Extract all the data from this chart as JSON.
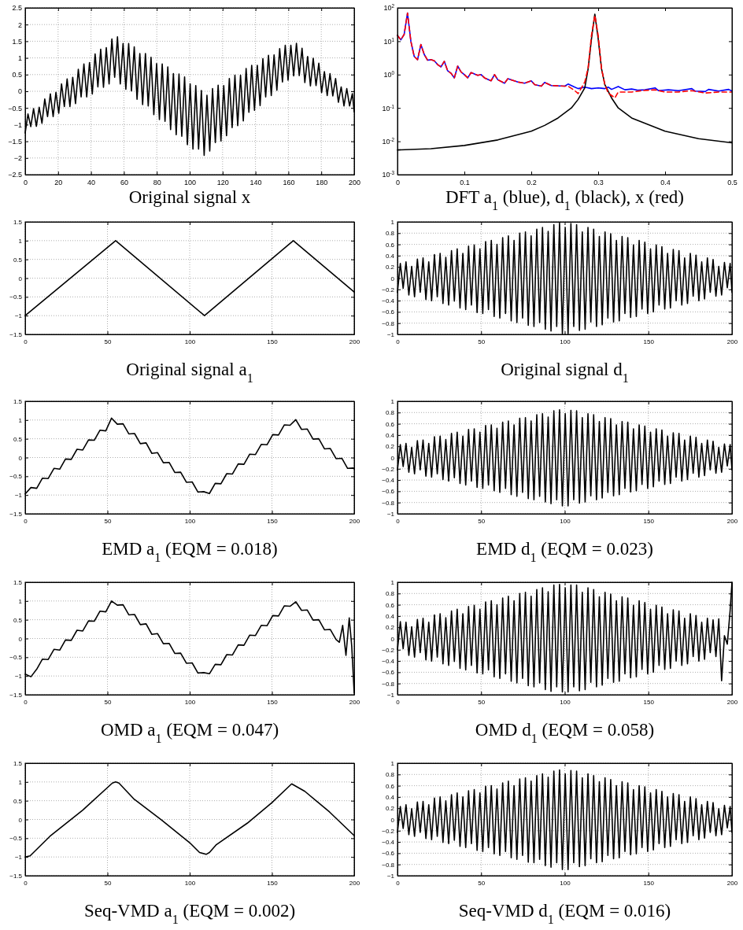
{
  "chart_data": [
    {
      "type": "line",
      "title": "Original signal x",
      "xlim": [
        0,
        200
      ],
      "ylim": [
        -2.5,
        2.5
      ],
      "xticks": [
        0,
        20,
        40,
        60,
        80,
        100,
        120,
        140,
        160,
        180,
        200
      ],
      "yticks": [
        -2.5,
        -2,
        -1.5,
        -1,
        -0.5,
        0,
        0.5,
        1,
        1.5,
        2,
        2.5
      ],
      "grid": true,
      "x": [
        0,
        1.7,
        3.4,
        5.1,
        6.8,
        8.5,
        10.2,
        11.9,
        13.6,
        15.3,
        17,
        18.7,
        20.4,
        22.1,
        23.8,
        25.5,
        27.2,
        28.9,
        30.6,
        32.3,
        34,
        35.7,
        37.4,
        39.1,
        40.8,
        42.5,
        44.2,
        45.9,
        47.6,
        49.3,
        51,
        52.7,
        54.4,
        56.1,
        57.8,
        59.5,
        61.2,
        62.9,
        64.6,
        66.3,
        68,
        69.7,
        71.4,
        73.1,
        74.8,
        76.5,
        78.2,
        79.9,
        81.6,
        83.3,
        85,
        86.7,
        88.4,
        90.1,
        91.8,
        93.5,
        95.2,
        96.9,
        98.6,
        100.3,
        102,
        103.7,
        105.4,
        107.1,
        108.8,
        110.5,
        112.2,
        113.9,
        115.6,
        117.3,
        119,
        120.7,
        122.4,
        124.1,
        125.8,
        127.5,
        129.2,
        130.9,
        132.6,
        134.3,
        136,
        137.7,
        139.4,
        141.1,
        142.8,
        144.5,
        146.2,
        147.9,
        149.6,
        151.3,
        153,
        154.7,
        156.4,
        158.1,
        159.8,
        161.5,
        163.2,
        164.9,
        166.6,
        168.3,
        170,
        171.7,
        173.4,
        175.1,
        176.8,
        178.5,
        180.2,
        181.9,
        183.6,
        185.3,
        187,
        188.7,
        190.4,
        192.1,
        193.8,
        195.5,
        197.2,
        198.9,
        200
      ],
      "series": [
        {
          "color": "#000000",
          "values": [
            -1.25,
            -0.68,
            -1.06,
            -0.52,
            -1.05,
            -0.48,
            -0.96,
            -0.23,
            -0.76,
            -0.08,
            -0.76,
            -0.03,
            -0.66,
            0.22,
            -0.46,
            0.37,
            -0.46,
            0.42,
            -0.37,
            0.66,
            -0.17,
            0.82,
            -0.17,
            0.86,
            -0.08,
            1.12,
            0.13,
            1.26,
            0.12,
            1.31,
            0.22,
            1.57,
            0.42,
            1.63,
            0.22,
            1.43,
            0.06,
            1.43,
            0.01,
            1.33,
            -0.24,
            1.13,
            -0.4,
            1.13,
            -0.44,
            1.02,
            -0.7,
            0.83,
            -0.85,
            0.82,
            -0.9,
            0.73,
            -1.15,
            0.53,
            -1.3,
            0.52,
            -1.35,
            0.43,
            -1.6,
            0.22,
            -1.73,
            0.17,
            -1.73,
            0.02,
            -1.92,
            -0.12,
            -1.79,
            0.08,
            -1.54,
            0.18,
            -1.49,
            0.17,
            -1.33,
            0.38,
            -1.09,
            0.48,
            -1.03,
            0.48,
            -0.89,
            0.68,
            -0.63,
            0.78,
            -0.57,
            0.78,
            -0.43,
            0.98,
            -0.17,
            1.08,
            -0.13,
            1.09,
            0.03,
            1.28,
            0.28,
            1.38,
            0.33,
            1.38,
            0.46,
            1.44,
            0.47,
            1.29,
            0.26,
            1.04,
            0.16,
            0.99,
            0.17,
            0.84,
            -0.04,
            0.59,
            -0.13,
            0.53,
            -0.14,
            0.38,
            -0.33,
            0.13,
            -0.44,
            0.08,
            -0.44,
            -0.07,
            -0.62
          ]
        }
      ]
    },
    {
      "type": "line",
      "title": "DFT a$_{1}$ (blue), d$_{1}$ (black), x (red)",
      "log": "y",
      "grid": false,
      "xlim": [
        0,
        0.5
      ],
      "ylim": [
        0.001,
        100
      ],
      "xticks": [
        0,
        0.1,
        0.2,
        0.3,
        0.4,
        0.5
      ],
      "yticks": [
        {
          "value": 0.001,
          "label": "10$^{-3}$"
        },
        {
          "value": 0.01,
          "label": "10$^{-2}$"
        },
        {
          "value": 0.1,
          "label": "10$^{-1}$"
        },
        {
          "value": 1,
          "label": "10$^{0}$"
        },
        {
          "value": 10,
          "label": "10$^{1}$"
        },
        {
          "value": 100,
          "label": "10$^{2}$"
        }
      ],
      "series": [
        {
          "color": "#0000ff",
          "x": [
            0,
            0.005,
            0.01,
            0.015,
            0.02,
            0.025,
            0.03,
            0.035,
            0.04,
            0.045,
            0.05,
            0.055,
            0.06,
            0.065,
            0.07,
            0.075,
            0.08,
            0.085,
            0.09,
            0.095,
            0.1,
            0.105,
            0.11,
            0.12,
            0.125,
            0.13,
            0.14,
            0.145,
            0.15,
            0.16,
            0.165,
            0.18,
            0.19,
            0.2,
            0.205,
            0.215,
            0.22,
            0.23,
            0.25,
            0.255,
            0.265,
            0.27,
            0.28,
            0.29,
            0.3,
            0.31,
            0.315,
            0.32,
            0.33,
            0.34,
            0.35,
            0.36,
            0.37,
            0.385,
            0.39,
            0.405,
            0.42,
            0.44,
            0.445,
            0.46,
            0.465,
            0.48,
            0.495,
            0.5
          ],
          "values": [
            15,
            11,
            16,
            70,
            10,
            3.5,
            2.8,
            8,
            4,
            2.7,
            2.8,
            2.6,
            2,
            1.7,
            2.5,
            1.3,
            1.1,
            0.8,
            1.8,
            1.2,
            1,
            0.8,
            1.15,
            0.95,
            1,
            0.8,
            0.65,
            1,
            0.7,
            0.55,
            0.75,
            0.6,
            0.55,
            0.65,
            0.5,
            0.45,
            0.58,
            0.47,
            0.45,
            0.52,
            0.42,
            0.38,
            0.42,
            0.38,
            0.4,
            0.38,
            0.42,
            0.36,
            0.44,
            0.35,
            0.37,
            0.34,
            0.35,
            0.4,
            0.33,
            0.35,
            0.33,
            0.38,
            0.32,
            0.31,
            0.36,
            0.32,
            0.36,
            0.32
          ]
        },
        {
          "color": "#000000",
          "x": [
            0,
            0.05,
            0.1,
            0.15,
            0.2,
            0.22,
            0.24,
            0.26,
            0.27,
            0.28,
            0.285,
            0.29,
            0.295,
            0.3,
            0.305,
            0.31,
            0.32,
            0.33,
            0.35,
            0.4,
            0.45,
            0.5
          ],
          "values": [
            0.0055,
            0.006,
            0.0075,
            0.011,
            0.02,
            0.03,
            0.05,
            0.1,
            0.18,
            0.4,
            1.5,
            12,
            65,
            12,
            1.5,
            0.5,
            0.2,
            0.1,
            0.05,
            0.02,
            0.012,
            0.009
          ]
        },
        {
          "color": "#ff0000",
          "line_style": "dashed",
          "x": [
            0,
            0.005,
            0.01,
            0.015,
            0.02,
            0.025,
            0.03,
            0.035,
            0.04,
            0.045,
            0.05,
            0.055,
            0.06,
            0.065,
            0.07,
            0.075,
            0.08,
            0.085,
            0.09,
            0.095,
            0.1,
            0.105,
            0.11,
            0.12,
            0.125,
            0.13,
            0.14,
            0.145,
            0.15,
            0.16,
            0.165,
            0.18,
            0.19,
            0.2,
            0.205,
            0.215,
            0.22,
            0.23,
            0.25,
            0.255,
            0.265,
            0.27,
            0.275,
            0.28,
            0.285,
            0.29,
            0.295,
            0.3,
            0.305,
            0.31,
            0.315,
            0.325,
            0.33,
            0.35,
            0.365,
            0.385,
            0.4,
            0.42,
            0.44,
            0.46,
            0.48,
            0.5
          ],
          "values": [
            15,
            11,
            16,
            70,
            10,
            3.5,
            2.8,
            8,
            4,
            2.7,
            2.8,
            2.6,
            2,
            1.7,
            2.5,
            1.3,
            1.1,
            0.8,
            1.8,
            1.2,
            1,
            0.8,
            1.15,
            0.95,
            1,
            0.8,
            0.65,
            1,
            0.7,
            0.55,
            0.75,
            0.6,
            0.55,
            0.65,
            0.5,
            0.45,
            0.58,
            0.47,
            0.45,
            0.45,
            0.33,
            0.27,
            0.4,
            0.6,
            1.6,
            15,
            60,
            15,
            1.5,
            0.5,
            0.28,
            0.2,
            0.3,
            0.3,
            0.33,
            0.35,
            0.3,
            0.3,
            0.33,
            0.28,
            0.3,
            0.3
          ]
        }
      ]
    },
    {
      "type": "line",
      "title": "Original signal a$_{1}$",
      "xlim": [
        0,
        200
      ],
      "ylim": [
        -1.5,
        1.5
      ],
      "xticks": [
        0,
        50,
        100,
        150,
        200
      ],
      "yticks": [
        -1.5,
        -1,
        -0.5,
        0,
        0.5,
        1,
        1.5
      ],
      "grid": true,
      "series": [
        {
          "color": "#000000",
          "x": [
            0,
            55,
            109,
            163,
            200
          ],
          "values": [
            -1,
            1,
            -1,
            1,
            -0.37
          ]
        }
      ]
    },
    {
      "type": "line",
      "title": "Original signal d$_{1}$",
      "xlim": [
        0,
        200
      ],
      "ylim": [
        -1,
        1
      ],
      "xticks": [
        0,
        50,
        100,
        150,
        200
      ],
      "yticks": [
        -1,
        -0.8,
        -0.6,
        -0.4,
        -0.2,
        0,
        0.2,
        0.4,
        0.6,
        0.8,
        1
      ],
      "grid": true,
      "x": [
        0,
        1.7,
        3.4,
        5.1,
        6.8,
        8.5,
        10.2,
        11.9,
        13.6,
        15.3,
        17,
        18.7,
        20.4,
        22.1,
        23.8,
        25.5,
        27.2,
        28.9,
        30.6,
        32.3,
        34,
        35.7,
        37.4,
        39.1,
        40.8,
        42.5,
        44.2,
        45.9,
        47.6,
        49.3,
        51,
        52.7,
        54.4,
        56.1,
        57.8,
        59.5,
        61.2,
        62.9,
        64.6,
        66.3,
        68,
        69.7,
        71.4,
        73.1,
        74.8,
        76.5,
        78.2,
        79.9,
        81.6,
        83.3,
        85,
        86.7,
        88.4,
        90.1,
        91.8,
        93.5,
        95.2,
        96.9,
        98.6,
        100.3,
        102,
        103.7,
        105.4,
        107.1,
        108.8,
        110.5,
        112.2,
        113.9,
        115.6,
        117.3,
        119,
        120.7,
        122.4,
        124.1,
        125.8,
        127.5,
        129.2,
        130.9,
        132.6,
        134.3,
        136,
        137.7,
        139.4,
        141.1,
        142.8,
        144.5,
        146.2,
        147.9,
        149.6,
        151.3,
        153,
        154.7,
        156.4,
        158.1,
        159.8,
        161.5,
        163.2,
        164.9,
        166.6,
        168.3,
        170,
        171.7,
        173.4,
        175.1,
        176.8,
        178.5,
        180.2,
        181.9,
        183.6,
        185.3,
        187,
        188.7,
        190.4,
        192.1,
        193.8,
        195.5,
        197.2,
        198.9,
        200
      ],
      "series": [
        {
          "color": "#000000",
          "values": [
            -0.25,
            0.26,
            -0.18,
            0.29,
            -0.3,
            0.21,
            -0.33,
            0.34,
            -0.25,
            0.36,
            -0.38,
            0.29,
            -0.4,
            0.42,
            -0.33,
            0.44,
            -0.45,
            0.37,
            -0.48,
            0.49,
            -0.41,
            0.52,
            -0.53,
            0.44,
            -0.56,
            0.57,
            -0.48,
            0.59,
            -0.61,
            0.52,
            -0.63,
            0.65,
            -0.56,
            0.67,
            -0.68,
            0.6,
            -0.71,
            0.72,
            -0.63,
            0.75,
            -0.76,
            0.67,
            -0.79,
            0.8,
            -0.71,
            0.82,
            -0.84,
            0.75,
            -0.86,
            0.87,
            -0.79,
            0.9,
            -0.91,
            0.83,
            -0.94,
            0.95,
            -0.86,
            0.98,
            -0.99,
            0.9,
            -0.99,
            0.97,
            -0.86,
            0.95,
            -0.93,
            0.82,
            -0.91,
            0.9,
            -0.78,
            0.87,
            -0.86,
            0.74,
            -0.83,
            0.82,
            -0.71,
            0.79,
            -0.78,
            0.67,
            -0.76,
            0.74,
            -0.63,
            0.72,
            -0.7,
            0.59,
            -0.68,
            0.67,
            -0.55,
            0.64,
            -0.63,
            0.52,
            -0.6,
            0.59,
            -0.48,
            0.56,
            -0.55,
            0.44,
            -0.53,
            0.51,
            -0.4,
            0.49,
            -0.48,
            0.36,
            -0.45,
            0.44,
            -0.32,
            0.41,
            -0.4,
            0.29,
            -0.37,
            0.36,
            -0.25,
            0.33,
            -0.32,
            0.21,
            -0.3,
            0.28,
            -0.17,
            0.26,
            -0.25
          ]
        }
      ]
    },
    {
      "type": "line",
      "title": "EMD a$_{1}$ (EQM = 0.018)",
      "xlim": [
        0,
        200
      ],
      "ylim": [
        -1.5,
        1.5
      ],
      "xticks": [
        0,
        50,
        100,
        150,
        200
      ],
      "yticks": [
        -1.5,
        -1,
        -0.5,
        0,
        0.5,
        1,
        1.5
      ],
      "grid": true,
      "series": [
        {
          "color": "#000000",
          "x": [
            0,
            3.5,
            7,
            10.5,
            14,
            17.5,
            21,
            24.5,
            28,
            31.5,
            35,
            38.5,
            42,
            45.5,
            49,
            52.5,
            56,
            59.5,
            63,
            66.5,
            70,
            73.5,
            77,
            80.5,
            84,
            87.5,
            91,
            94.5,
            98,
            101.5,
            105,
            108.5,
            112,
            115.5,
            119,
            122.5,
            126,
            129.5,
            133,
            136.5,
            140,
            143.5,
            147,
            150.5,
            154,
            157.5,
            161,
            164.5,
            168,
            171.5,
            175,
            178.5,
            182,
            185.5,
            189,
            192.5,
            196,
            199.5,
            200
          ],
          "values": [
            -0.97,
            -0.8,
            -0.82,
            -0.55,
            -0.56,
            -0.29,
            -0.31,
            -0.04,
            -0.05,
            0.22,
            0.2,
            0.47,
            0.46,
            0.73,
            0.71,
            1.05,
            0.89,
            0.9,
            0.63,
            0.64,
            0.37,
            0.39,
            0.11,
            0.13,
            -0.14,
            -0.13,
            -0.4,
            -0.39,
            -0.66,
            -0.65,
            -0.92,
            -0.91,
            -0.96,
            -0.69,
            -0.7,
            -0.43,
            -0.44,
            -0.17,
            -0.18,
            0.09,
            0.08,
            0.35,
            0.34,
            0.61,
            0.6,
            0.87,
            0.86,
            1.01,
            0.75,
            0.76,
            0.49,
            0.5,
            0.23,
            0.24,
            -0.03,
            -0.02,
            -0.29,
            -0.28,
            -0.3
          ]
        }
      ]
    },
    {
      "type": "line",
      "title": "EMD d$_{1}$ (EQM = 0.023)",
      "xlim": [
        0,
        200
      ],
      "ylim": [
        -1,
        1
      ],
      "xticks": [
        0,
        50,
        100,
        150,
        200
      ],
      "yticks": [
        -1,
        -0.8,
        -0.6,
        -0.4,
        -0.2,
        0,
        0.2,
        0.4,
        0.6,
        0.8,
        1
      ],
      "grid": true,
      "x": [
        0,
        1.7,
        3.4,
        5.1,
        6.8,
        8.5,
        10.2,
        11.9,
        13.6,
        15.3,
        17,
        18.7,
        20.4,
        22.1,
        23.8,
        25.5,
        27.2,
        28.9,
        30.6,
        32.3,
        34,
        35.7,
        37.4,
        39.1,
        40.8,
        42.5,
        44.2,
        45.9,
        47.6,
        49.3,
        51,
        52.7,
        54.4,
        56.1,
        57.8,
        59.5,
        61.2,
        62.9,
        64.6,
        66.3,
        68,
        69.7,
        71.4,
        73.1,
        74.8,
        76.5,
        78.2,
        79.9,
        81.6,
        83.3,
        85,
        86.7,
        88.4,
        90.1,
        91.8,
        93.5,
        95.2,
        96.9,
        98.6,
        100.3,
        102,
        103.7,
        105.4,
        107.1,
        108.8,
        110.5,
        112.2,
        113.9,
        115.6,
        117.3,
        119,
        120.7,
        122.4,
        124.1,
        125.8,
        127.5,
        129.2,
        130.9,
        132.6,
        134.3,
        136,
        137.7,
        139.4,
        141.1,
        142.8,
        144.5,
        146.2,
        147.9,
        149.6,
        151.3,
        153,
        154.7,
        156.4,
        158.1,
        159.8,
        161.5,
        163.2,
        164.9,
        166.6,
        168.3,
        170,
        171.7,
        173.4,
        175.1,
        176.8,
        178.5,
        180.2,
        181.9,
        183.6,
        185.3,
        187,
        188.7,
        190.4,
        192.1,
        193.8,
        195.5,
        197.2,
        198.9,
        200
      ],
      "series": [
        {
          "color": "#000000",
          "values": [
            -0.22,
            0.23,
            -0.16,
            0.25,
            -0.26,
            0.18,
            -0.29,
            0.3,
            -0.22,
            0.31,
            -0.33,
            0.25,
            -0.35,
            0.37,
            -0.29,
            0.38,
            -0.39,
            0.32,
            -0.42,
            0.43,
            -0.36,
            0.45,
            -0.46,
            0.38,
            -0.49,
            0.5,
            -0.42,
            0.51,
            -0.53,
            0.45,
            -0.55,
            0.57,
            -0.49,
            0.58,
            -0.59,
            0.52,
            -0.62,
            0.63,
            -0.55,
            0.65,
            -0.66,
            0.58,
            -0.69,
            0.7,
            -0.62,
            0.71,
            -0.73,
            0.65,
            -0.75,
            0.76,
            -0.69,
            0.78,
            -0.79,
            0.72,
            -0.82,
            0.83,
            -0.75,
            0.85,
            -0.86,
            0.78,
            -0.86,
            0.84,
            -0.75,
            0.83,
            -0.81,
            0.71,
            -0.79,
            0.78,
            -0.68,
            0.76,
            -0.75,
            0.64,
            -0.72,
            0.71,
            -0.62,
            0.69,
            -0.68,
            0.58,
            -0.66,
            0.64,
            -0.55,
            0.63,
            -0.61,
            0.51,
            -0.59,
            0.58,
            -0.48,
            0.56,
            -0.55,
            0.45,
            -0.52,
            0.51,
            -0.42,
            0.49,
            -0.48,
            0.38,
            -0.46,
            0.44,
            -0.35,
            0.43,
            -0.42,
            0.31,
            -0.39,
            0.38,
            -0.28,
            0.36,
            -0.35,
            0.25,
            -0.32,
            0.31,
            -0.22,
            0.29,
            -0.28,
            0.18,
            -0.26,
            0.24,
            -0.15,
            0.23,
            -0.22
          ]
        }
      ]
    },
    {
      "type": "line",
      "title": "OMD a$_{1}$ (EQM = 0.047)",
      "xlim": [
        0,
        200
      ],
      "ylim": [
        -1.5,
        1.5
      ],
      "xticks": [
        0,
        50,
        100,
        150,
        200
      ],
      "yticks": [
        -1.5,
        -1,
        -0.5,
        0,
        0.5,
        1,
        1.5
      ],
      "grid": true,
      "series": [
        {
          "color": "#000000",
          "x": [
            0,
            3.5,
            7,
            10.5,
            14,
            17.5,
            21,
            24.5,
            28,
            31.5,
            35,
            38.5,
            42,
            45.5,
            49,
            52.5,
            56,
            59.5,
            63,
            66.5,
            70,
            73.5,
            77,
            80.5,
            84,
            87.5,
            91,
            94.5,
            98,
            101.5,
            105,
            108.5,
            112,
            115.5,
            119,
            122.5,
            126,
            129.5,
            133,
            136.5,
            140,
            143.5,
            147,
            150.5,
            154,
            157.5,
            161,
            164.5,
            168,
            171.5,
            175,
            178.5,
            182,
            185.5,
            189,
            191,
            193,
            195,
            197,
            198.5,
            200
          ],
          "values": [
            -0.95,
            -1.02,
            -0.82,
            -0.55,
            -0.56,
            -0.29,
            -0.31,
            -0.04,
            -0.05,
            0.22,
            0.2,
            0.47,
            0.46,
            0.73,
            0.71,
            1.0,
            0.89,
            0.9,
            0.63,
            0.64,
            0.37,
            0.39,
            0.11,
            0.13,
            -0.14,
            -0.13,
            -0.4,
            -0.39,
            -0.66,
            -0.65,
            -0.92,
            -0.91,
            -0.94,
            -0.69,
            -0.7,
            -0.43,
            -0.44,
            -0.17,
            -0.18,
            0.09,
            0.08,
            0.35,
            0.34,
            0.61,
            0.6,
            0.87,
            0.86,
            0.98,
            0.75,
            0.76,
            0.49,
            0.5,
            0.23,
            0.24,
            -0.03,
            -0.1,
            0.35,
            -0.45,
            0.55,
            -0.2,
            -1.45
          ]
        }
      ]
    },
    {
      "type": "line",
      "title": "OMD d$_{1}$ (EQM = 0.058)",
      "xlim": [
        0,
        200
      ],
      "ylim": [
        -1,
        1
      ],
      "xticks": [
        0,
        50,
        100,
        150,
        200
      ],
      "yticks": [
        -1,
        -0.8,
        -0.6,
        -0.4,
        -0.2,
        0,
        0.2,
        0.4,
        0.6,
        0.8,
        1
      ],
      "grid": true,
      "x": [
        0,
        1.7,
        3.4,
        5.1,
        6.8,
        8.5,
        10.2,
        11.9,
        13.6,
        15.3,
        17,
        18.7,
        20.4,
        22.1,
        23.8,
        25.5,
        27.2,
        28.9,
        30.6,
        32.3,
        34,
        35.7,
        37.4,
        39.1,
        40.8,
        42.5,
        44.2,
        45.9,
        47.6,
        49.3,
        51,
        52.7,
        54.4,
        56.1,
        57.8,
        59.5,
        61.2,
        62.9,
        64.6,
        66.3,
        68,
        69.7,
        71.4,
        73.1,
        74.8,
        76.5,
        78.2,
        79.9,
        81.6,
        83.3,
        85,
        86.7,
        88.4,
        90.1,
        91.8,
        93.5,
        95.2,
        96.9,
        98.6,
        100.3,
        102,
        103.7,
        105.4,
        107.1,
        108.8,
        110.5,
        112.2,
        113.9,
        115.6,
        117.3,
        119,
        120.7,
        122.4,
        124.1,
        125.8,
        127.5,
        129.2,
        130.9,
        132.6,
        134.3,
        136,
        137.7,
        139.4,
        141.1,
        142.8,
        144.5,
        146.2,
        147.9,
        149.6,
        151.3,
        153,
        154.7,
        156.4,
        158.1,
        159.8,
        161.5,
        163.2,
        164.9,
        166.6,
        168.3,
        170,
        171.7,
        173.4,
        175.1,
        176.8,
        178.5,
        180.2,
        181.9,
        183.6,
        185.3,
        187,
        188.7,
        190.4,
        192.1,
        193.8,
        195.5,
        197.2,
        198.9,
        200
      ],
      "series": [
        {
          "color": "#000000",
          "values": [
            -0.2,
            0.3,
            -0.18,
            0.29,
            -0.3,
            0.21,
            -0.33,
            0.34,
            -0.25,
            0.36,
            -0.38,
            0.29,
            -0.4,
            0.42,
            -0.33,
            0.44,
            -0.45,
            0.37,
            -0.48,
            0.49,
            -0.41,
            0.52,
            -0.53,
            0.44,
            -0.56,
            0.57,
            -0.48,
            0.59,
            -0.61,
            0.52,
            -0.63,
            0.65,
            -0.56,
            0.67,
            -0.68,
            0.6,
            -0.71,
            0.72,
            -0.63,
            0.75,
            -0.76,
            0.67,
            -0.79,
            0.8,
            -0.71,
            0.82,
            -0.84,
            0.75,
            -0.86,
            0.87,
            -0.79,
            0.9,
            -0.91,
            0.83,
            -0.94,
            0.95,
            -0.86,
            0.96,
            -0.95,
            0.9,
            -0.95,
            0.95,
            -0.86,
            0.95,
            -0.93,
            0.82,
            -0.91,
            0.9,
            -0.78,
            0.87,
            -0.86,
            0.74,
            -0.83,
            0.82,
            -0.71,
            0.79,
            -0.78,
            0.67,
            -0.76,
            0.74,
            -0.63,
            0.72,
            -0.7,
            0.59,
            -0.68,
            0.67,
            -0.55,
            0.64,
            -0.63,
            0.52,
            -0.6,
            0.59,
            -0.48,
            0.56,
            -0.55,
            0.44,
            -0.53,
            0.51,
            -0.4,
            0.49,
            -0.48,
            0.36,
            -0.45,
            0.44,
            -0.32,
            0.41,
            -0.4,
            0.29,
            -0.37,
            0.36,
            -0.25,
            0.33,
            -0.32,
            0.35,
            -0.75,
            0.05,
            -0.1,
            0.5,
            1
          ]
        }
      ]
    },
    {
      "type": "line",
      "title": "Seq-VMD a$_{1}$ (EQM = 0.002)",
      "xlim": [
        0,
        200
      ],
      "ylim": [
        -1.5,
        1.5
      ],
      "xticks": [
        0,
        50,
        100,
        150,
        200
      ],
      "yticks": [
        -1.5,
        -1,
        -0.5,
        0,
        0.5,
        1,
        1.5
      ],
      "grid": true,
      "series": [
        {
          "color": "#000000",
          "x": [
            0,
            3,
            15,
            35,
            53,
            55,
            57,
            66,
            83,
            100,
            106,
            110,
            112,
            116,
            135,
            150,
            162,
            170,
            185,
            200
          ],
          "values": [
            -1,
            -0.97,
            -0.45,
            0.25,
            0.97,
            1,
            0.97,
            0.55,
            -0.02,
            -0.62,
            -0.88,
            -0.93,
            -0.88,
            -0.68,
            -0.1,
            0.45,
            0.95,
            0.75,
            0.2,
            -0.43
          ]
        }
      ]
    },
    {
      "type": "line",
      "title": "Seq-VMD d$_{1}$ (EQM = 0.016)",
      "xlim": [
        0,
        200
      ],
      "ylim": [
        -1,
        1
      ],
      "xticks": [
        0,
        50,
        100,
        150,
        200
      ],
      "yticks": [
        -1,
        -0.8,
        -0.6,
        -0.4,
        -0.2,
        0,
        0.2,
        0.4,
        0.6,
        0.8,
        1
      ],
      "grid": true,
      "x": [
        0,
        1.7,
        3.4,
        5.1,
        6.8,
        8.5,
        10.2,
        11.9,
        13.6,
        15.3,
        17,
        18.7,
        20.4,
        22.1,
        23.8,
        25.5,
        27.2,
        28.9,
        30.6,
        32.3,
        34,
        35.7,
        37.4,
        39.1,
        40.8,
        42.5,
        44.2,
        45.9,
        47.6,
        49.3,
        51,
        52.7,
        54.4,
        56.1,
        57.8,
        59.5,
        61.2,
        62.9,
        64.6,
        66.3,
        68,
        69.7,
        71.4,
        73.1,
        74.8,
        76.5,
        78.2,
        79.9,
        81.6,
        83.3,
        85,
        86.7,
        88.4,
        90.1,
        91.8,
        93.5,
        95.2,
        96.9,
        98.6,
        100.3,
        102,
        103.7,
        105.4,
        107.1,
        108.8,
        110.5,
        112.2,
        113.9,
        115.6,
        117.3,
        119,
        120.7,
        122.4,
        124.1,
        125.8,
        127.5,
        129.2,
        130.9,
        132.6,
        134.3,
        136,
        137.7,
        139.4,
        141.1,
        142.8,
        144.5,
        146.2,
        147.9,
        149.6,
        151.3,
        153,
        154.7,
        156.4,
        158.1,
        159.8,
        161.5,
        163.2,
        164.9,
        166.6,
        168.3,
        170,
        171.7,
        173.4,
        175.1,
        176.8,
        178.5,
        180.2,
        181.9,
        183.6,
        185.3,
        187,
        188.7,
        190.4,
        192.1,
        193.8,
        195.5,
        197.2,
        198.9,
        200
      ],
      "series": [
        {
          "color": "#000000",
          "values": [
            -0.23,
            0.23,
            -0.16,
            0.26,
            -0.27,
            0.19,
            -0.3,
            0.31,
            -0.23,
            0.32,
            -0.34,
            0.26,
            -0.36,
            0.38,
            -0.3,
            0.4,
            -0.41,
            0.33,
            -0.43,
            0.44,
            -0.37,
            0.47,
            -0.48,
            0.4,
            -0.5,
            0.51,
            -0.43,
            0.53,
            -0.55,
            0.47,
            -0.57,
            0.59,
            -0.5,
            0.6,
            -0.61,
            0.54,
            -0.64,
            0.65,
            -0.57,
            0.68,
            -0.68,
            0.6,
            -0.71,
            0.72,
            -0.64,
            0.74,
            -0.76,
            0.68,
            -0.77,
            0.78,
            -0.71,
            0.81,
            -0.82,
            0.75,
            -0.85,
            0.86,
            -0.77,
            0.88,
            -0.89,
            0.81,
            -0.89,
            0.87,
            -0.77,
            0.86,
            -0.84,
            0.74,
            -0.82,
            0.81,
            -0.7,
            0.78,
            -0.77,
            0.67,
            -0.75,
            0.74,
            -0.64,
            0.71,
            -0.7,
            0.6,
            -0.68,
            0.67,
            -0.57,
            0.65,
            -0.63,
            0.53,
            -0.61,
            0.6,
            -0.5,
            0.58,
            -0.57,
            0.47,
            -0.54,
            0.53,
            -0.43,
            0.5,
            -0.5,
            0.4,
            -0.48,
            0.46,
            -0.36,
            0.44,
            -0.43,
            0.32,
            -0.41,
            0.4,
            -0.29,
            0.37,
            -0.36,
            0.26,
            -0.33,
            0.32,
            -0.23,
            0.3,
            -0.29,
            0.19,
            -0.27,
            0.25,
            -0.15,
            0.23,
            -0.23
          ]
        }
      ]
    }
  ]
}
